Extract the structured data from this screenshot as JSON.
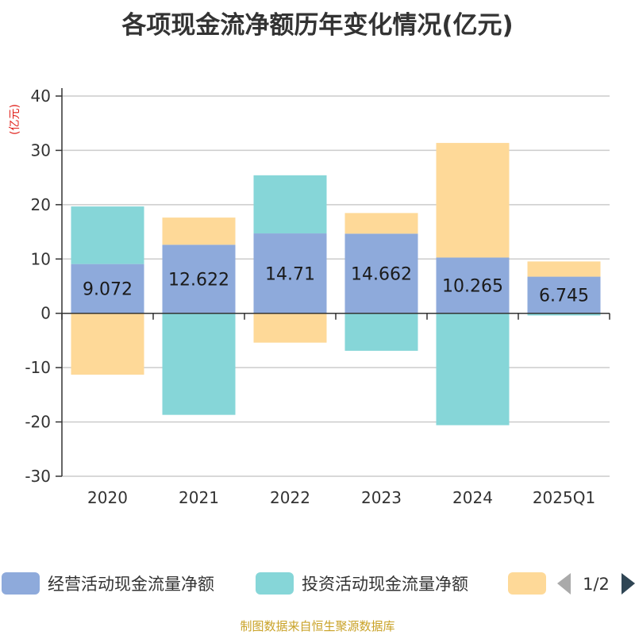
{
  "chart_data": {
    "type": "bar",
    "stacked": true,
    "title": "各项现金流净额历年变化情况(亿元)",
    "unit": "(亿元)",
    "categories": [
      "2020",
      "2021",
      "2022",
      "2023",
      "2024",
      "2025Q1"
    ],
    "ylim": [
      -30,
      40
    ],
    "yticks": [
      -30,
      -20,
      -10,
      0,
      10,
      20,
      30,
      40
    ],
    "grid": true,
    "series": [
      {
        "name": "经营活动现金流量净额",
        "color": "#8eaadb",
        "values": [
          9.072,
          12.622,
          14.71,
          14.662,
          10.265,
          6.745
        ],
        "labels": [
          "9.072",
          "12.622",
          "14.71",
          "14.662",
          "10.265",
          "6.745"
        ]
      },
      {
        "name": "投资活动现金流量净额",
        "color": "#86d6d8",
        "values": [
          10.6,
          -18.7,
          10.7,
          -6.9,
          -20.6,
          -0.4
        ]
      },
      {
        "name": "",
        "color": "#fed998",
        "values": [
          -11.3,
          5.0,
          -5.4,
          3.8,
          21.1,
          2.8
        ]
      }
    ],
    "legend": {
      "position": "bottom",
      "page": "1/2"
    }
  },
  "footer": "制图数据来自恒生聚源数据库"
}
